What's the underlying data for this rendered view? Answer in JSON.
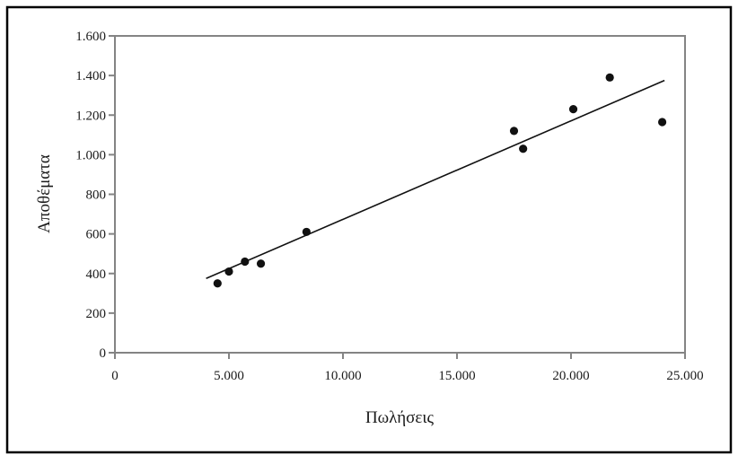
{
  "chart_data": {
    "type": "scatter",
    "title": "",
    "xlabel": "Πωλήσεις",
    "ylabel": "Αποθέματα",
    "xlim": [
      0,
      25000
    ],
    "ylim": [
      0,
      1600
    ],
    "grid": false,
    "legend": "none",
    "x_ticks": [
      0,
      5000,
      10000,
      15000,
      20000,
      25000
    ],
    "x_tick_labels": [
      "0",
      "5.000",
      "10.000",
      "15.000",
      "20.000",
      "25.000"
    ],
    "y_ticks": [
      0,
      200,
      400,
      600,
      800,
      1000,
      1200,
      1400,
      1600
    ],
    "y_tick_labels": [
      "0",
      "200",
      "400",
      "600",
      "800",
      "1.000",
      "1.200",
      "1.400",
      "1.600"
    ],
    "points": [
      [
        4500,
        350
      ],
      [
        5000,
        410
      ],
      [
        5700,
        460
      ],
      [
        6400,
        450
      ],
      [
        8400,
        610
      ],
      [
        17500,
        1120
      ],
      [
        17900,
        1030
      ],
      [
        20100,
        1230
      ],
      [
        21700,
        1390
      ],
      [
        24000,
        1165
      ]
    ],
    "trend_line": {
      "x1": 4000,
      "y1": 375,
      "x2": 24100,
      "y2": 1375
    },
    "colors": {
      "point": "#111111",
      "trend": "#111111",
      "axis": "#848484",
      "outer_border": "#000000",
      "text": "#1a1a1a",
      "background": "#ffffff"
    }
  }
}
